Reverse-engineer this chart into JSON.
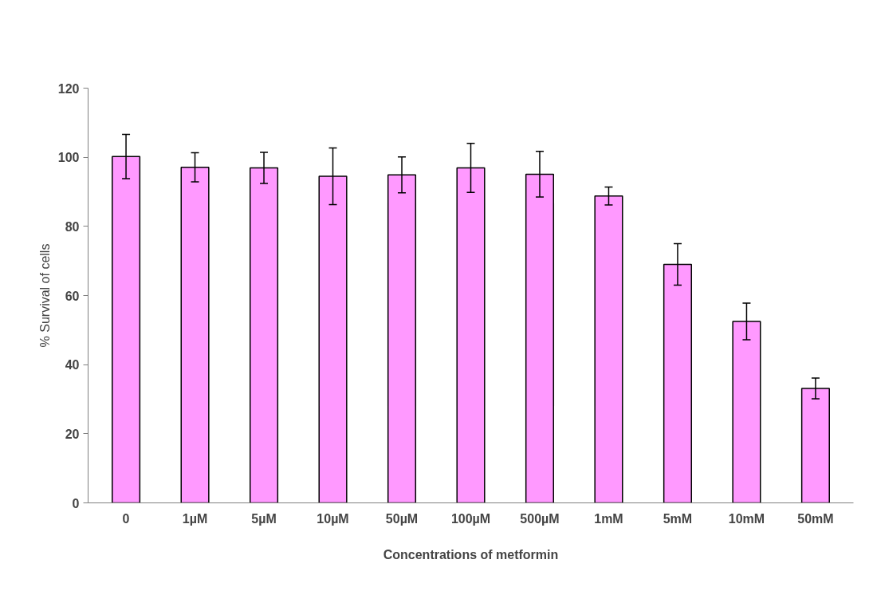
{
  "chart_data": {
    "type": "bar",
    "xlabel": "Concentrations of metformin",
    "ylabel": "% Survival of cells",
    "categories": [
      "0",
      "1µM",
      "5µM",
      "10µM",
      "50µM",
      "100µM",
      "500µM",
      "1mM",
      "5mM",
      "10mM",
      "50mM"
    ],
    "values": [
      100.2,
      97.1,
      96.9,
      94.5,
      94.9,
      96.9,
      95.1,
      88.8,
      69.0,
      52.5,
      33.1
    ],
    "errors": [
      6.4,
      4.2,
      4.5,
      8.2,
      5.2,
      7.1,
      6.6,
      2.6,
      6.0,
      5.3,
      3.0
    ],
    "color": "#ff99ff",
    "ylim": [
      0,
      120
    ],
    "yticks": [
      0,
      20,
      40,
      60,
      80,
      100,
      120
    ],
    "grid": false
  }
}
